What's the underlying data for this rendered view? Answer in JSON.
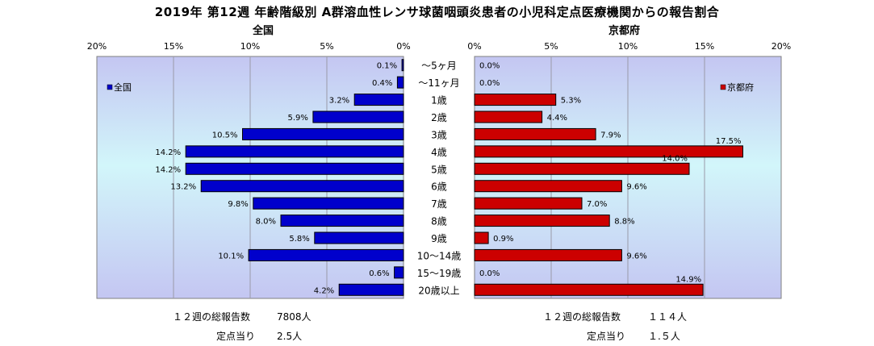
{
  "chart_data": {
    "type": "bar",
    "title": "2019年 第12週 年齢階級別 A群溶血性レンサ球菌咽頭炎患者の小児科定点医療機関からの報告割合",
    "categories": [
      "～5ヶ月",
      "～11ヶ月",
      "1歳",
      "2歳",
      "3歳",
      "4歳",
      "5歳",
      "6歳",
      "7歳",
      "8歳",
      "9歳",
      "10～14歳",
      "15～19歳",
      "20歳以上"
    ],
    "panels": [
      {
        "subtitle": "全国",
        "legend": "全国",
        "legend_position": "top-left",
        "xlim": [
          0,
          20
        ],
        "ticks": [
          "20%",
          "15%",
          "10%",
          "5%",
          "0%"
        ],
        "color": "#0000cc",
        "values": [
          0.1,
          0.4,
          3.2,
          5.9,
          10.5,
          14.2,
          14.2,
          13.2,
          9.8,
          8.0,
          5.8,
          10.1,
          0.6,
          4.2
        ],
        "labels": [
          "0.1%",
          "0.4%",
          "3.2%",
          "5.9%",
          "10.5%",
          "14.2%",
          "14.2%",
          "13.2%",
          "9.8%",
          "8.0%",
          "5.8%",
          "10.1%",
          "0.6%",
          "4.2%"
        ]
      },
      {
        "subtitle": "京都府",
        "legend": "京都府",
        "legend_position": "top-right",
        "xlim": [
          0,
          20
        ],
        "ticks": [
          "0%",
          "5%",
          "10%",
          "15%",
          "20%"
        ],
        "color": "#cc0000",
        "values": [
          0.0,
          0.0,
          5.3,
          4.4,
          7.9,
          17.5,
          14.0,
          9.6,
          7.0,
          8.8,
          0.9,
          9.6,
          0.0,
          14.9
        ],
        "labels": [
          "0.0%",
          "0.0%",
          "5.3%",
          "4.4%",
          "7.9%",
          "17.5%",
          "14.0%",
          "9.6%",
          "7.0%",
          "8.8%",
          "0.9%",
          "9.6%",
          "0.0%",
          "14.9%"
        ]
      }
    ]
  },
  "footer": {
    "national": {
      "total_label": "１２週の総報告数",
      "total_value": "7808人",
      "per_label": "定点当り",
      "per_value": "2.5人"
    },
    "kyoto": {
      "total_label": "１２週の総報告数",
      "total_value": "１１４人",
      "per_label": "定点当り",
      "per_value": "１.５人"
    }
  }
}
